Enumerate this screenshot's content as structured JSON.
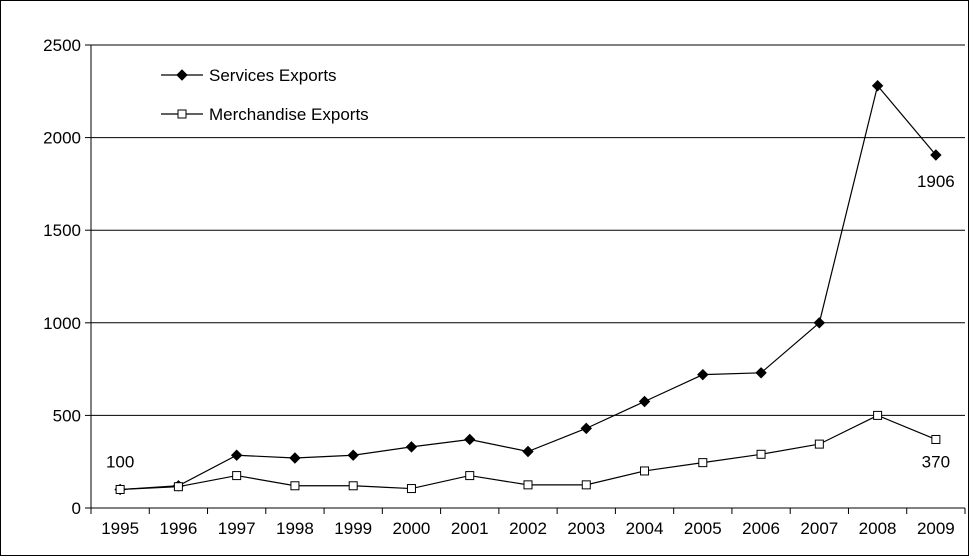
{
  "chart_data": {
    "type": "line",
    "title": "",
    "xlabel": "",
    "ylabel": "",
    "categories": [
      "1995",
      "1996",
      "1997",
      "1998",
      "1999",
      "2000",
      "2001",
      "2002",
      "2003",
      "2004",
      "2005",
      "2006",
      "2007",
      "2008",
      "2009"
    ],
    "ylim": [
      0,
      2500
    ],
    "yticks": [
      0,
      500,
      1000,
      1500,
      2000,
      2500
    ],
    "grid": true,
    "legend_position": "top-left",
    "series": [
      {
        "name": "Services Exports",
        "marker": "filled-diamond",
        "color": "#000000",
        "values": [
          100,
          120,
          285,
          270,
          285,
          330,
          370,
          305,
          430,
          575,
          720,
          730,
          1000,
          2280,
          1906
        ]
      },
      {
        "name": "Merchandise Exports",
        "marker": "open-square",
        "color": "#000000",
        "values": [
          100,
          115,
          175,
          120,
          120,
          105,
          175,
          125,
          125,
          200,
          245,
          290,
          345,
          500,
          370
        ]
      }
    ],
    "annotations": [
      {
        "text": "100",
        "series": 0,
        "index": 0
      },
      {
        "text": "1906",
        "series": 0,
        "index": 14
      },
      {
        "text": "370",
        "series": 1,
        "index": 14
      }
    ]
  }
}
